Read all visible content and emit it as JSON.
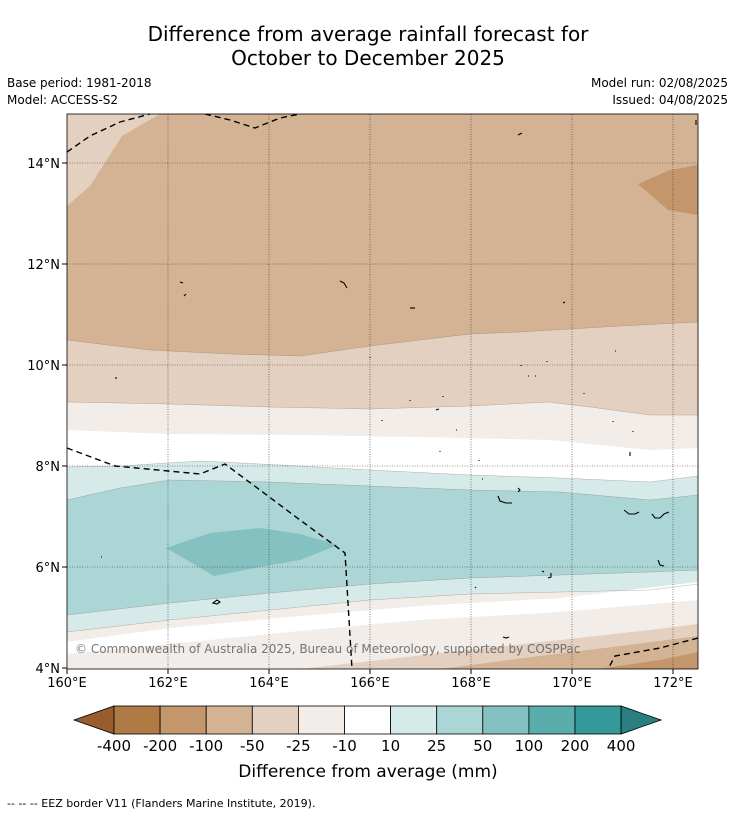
{
  "title": {
    "line1": "Difference from average rainfall forecast for",
    "line2": "October to December 2025"
  },
  "meta": {
    "base_period": "Base period: 1981-2018",
    "model": "Model: ACCESS-S2",
    "model_run": "Model run: 02/08/2025",
    "issued": "Issued: 04/08/2025"
  },
  "map": {
    "lon_range": [
      160,
      172.5
    ],
    "lat_range": [
      4,
      15
    ],
    "x_ticks": [
      "160°E",
      "162°E",
      "164°E",
      "166°E",
      "168°E",
      "170°E",
      "172°E"
    ],
    "y_ticks": [
      "4°N",
      "6°N",
      "8°N",
      "10°N",
      "12°N",
      "14°N"
    ],
    "gridlines": true,
    "copyright": "© Commonwealth of Australia 2025, Bureau of Meteorology, supported by COSPPac",
    "overlay": "EEZ border (dashed)"
  },
  "colorbar": {
    "labels": [
      "-400",
      "-200",
      "-100",
      "-50",
      "-25",
      "-10",
      "10",
      "25",
      "50",
      "100",
      "200",
      "400"
    ],
    "colors": [
      "#995c2c",
      "#b07a44",
      "#c3966c",
      "#d4b394",
      "#e4d0c0",
      "#f2ede8",
      "#ffffff",
      "#d6eaea",
      "#acd5d5",
      "#86c1c1",
      "#5aadad",
      "#339999",
      "#2b7f7f"
    ],
    "title": "Difference from average (mm)"
  },
  "footnote": "--  --  -- EEZ border V11 (Flanders Marine Institute, 2019)."
}
